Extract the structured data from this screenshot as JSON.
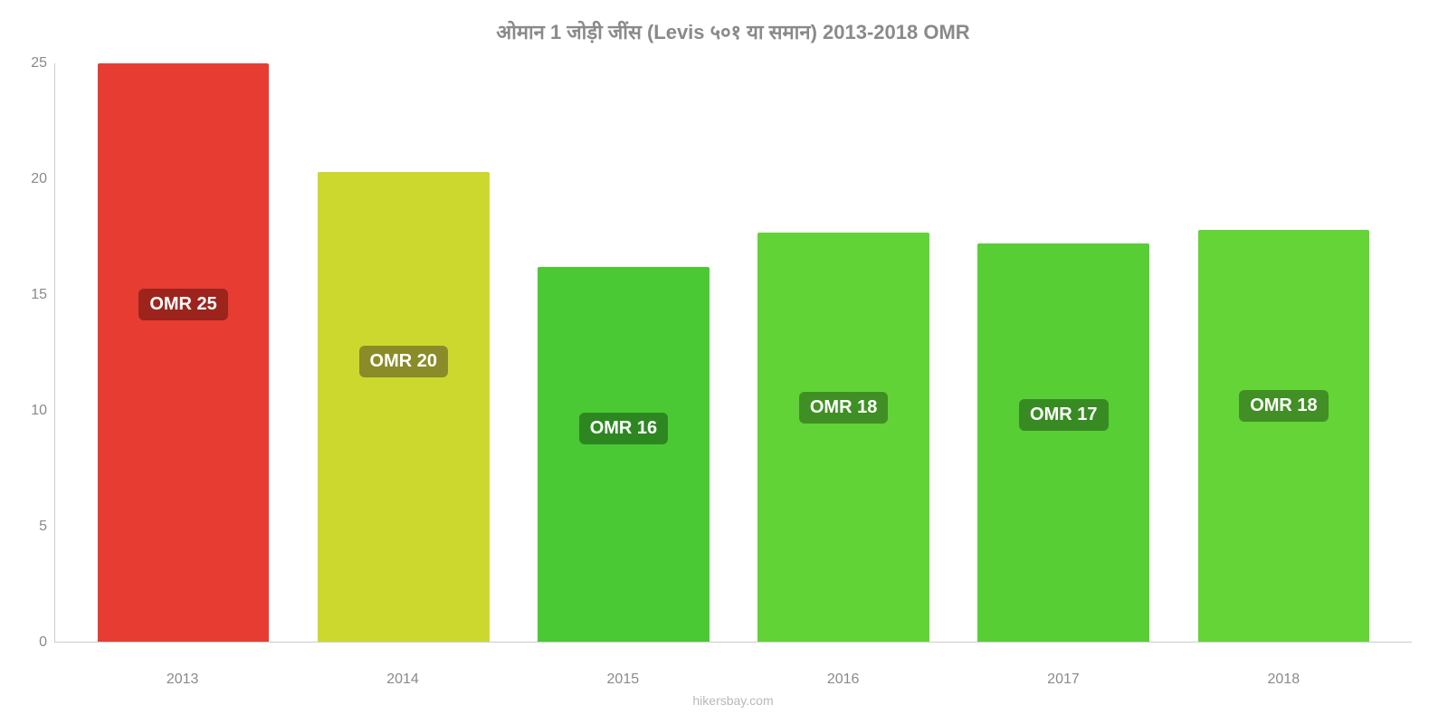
{
  "chart": {
    "type": "bar",
    "title": "ओमान 1 जोड़ी जींस (Levis ५०१ या समान) 2013-2018 OMR",
    "title_fontsize": 22,
    "title_color": "#8a8a8a",
    "title_weight": "bold",
    "background_color": "#ffffff",
    "axis_color": "#cccccc",
    "tick_color": "#8a8a8a",
    "tick_fontsize": 16,
    "x_label_fontsize": 16,
    "ylim": [
      0,
      25
    ],
    "yticks": [
      0,
      5,
      10,
      15,
      20,
      25
    ],
    "bar_width_pct": 78,
    "categories": [
      "2013",
      "2014",
      "2015",
      "2016",
      "2017",
      "2018"
    ],
    "values": [
      25,
      20.3,
      16.2,
      17.7,
      17.2,
      17.8
    ],
    "bar_colors": [
      "#e73c32",
      "#cdd82f",
      "#4ac934",
      "#62d336",
      "#58ce35",
      "#64d437"
    ],
    "value_labels": [
      "OMR 25",
      "OMR 20",
      "OMR 16",
      "OMR 18",
      "OMR 17",
      "OMR 18"
    ],
    "label_bg_colors": [
      "#9c241d",
      "#898c29",
      "#2d8721",
      "#3f8f24",
      "#388b23",
      "#418f25"
    ],
    "label_top_pct": [
      39,
      37,
      39,
      39,
      39,
      39
    ],
    "label_fontsize": 20,
    "attribution": "hikersbay.com",
    "attribution_color": "#b8b8b8",
    "attribution_fontsize": 14
  }
}
